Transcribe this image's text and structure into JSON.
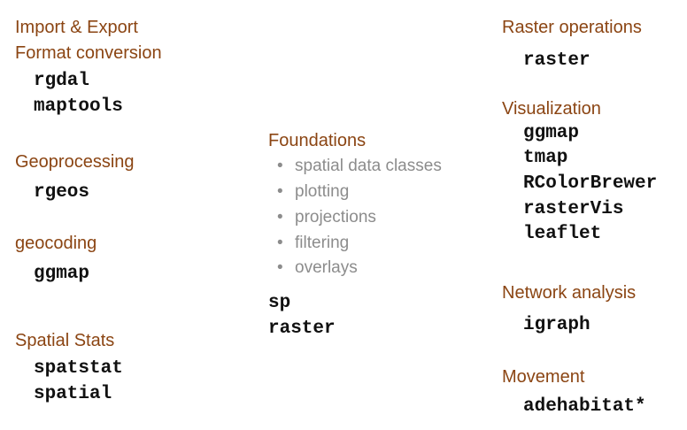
{
  "left_column": {
    "import_export_title": "Import & Export",
    "format_conversion_title": "Format conversion",
    "format_conversion_packages": [
      "rgdal",
      "maptools"
    ],
    "geoprocessing_title": "Geoprocessing",
    "geoprocessing_packages": [
      "rgeos"
    ],
    "geocoding_title": "geocoding",
    "geocoding_packages": [
      "ggmap"
    ],
    "spatial_stats_title": "Spatial Stats",
    "spatial_stats_packages": [
      "spatstat",
      "spatial"
    ]
  },
  "middle_column": {
    "foundations_title": "Foundations",
    "bullet_symbol": "•",
    "foundations_topics": [
      "spatial data classes",
      "plotting",
      "projections",
      "filtering",
      "overlays"
    ],
    "foundations_packages": [
      "sp",
      "raster"
    ]
  },
  "right_column": {
    "raster_operations_title": "Raster operations",
    "raster_operations_packages": [
      "raster"
    ],
    "visualization_title": "Visualization",
    "visualization_packages": [
      "ggmap",
      "tmap",
      "RColorBrewer",
      "rasterVis",
      "leaflet"
    ],
    "network_analysis_title": "Network analysis",
    "network_analysis_packages": [
      "igraph"
    ],
    "movement_title": "Movement",
    "movement_packages": [
      "adehabitat*"
    ]
  },
  "colors": {
    "heading": "#8b4513",
    "package": "#111111",
    "topic": "#8c8c8c",
    "background": "#ffffff"
  }
}
